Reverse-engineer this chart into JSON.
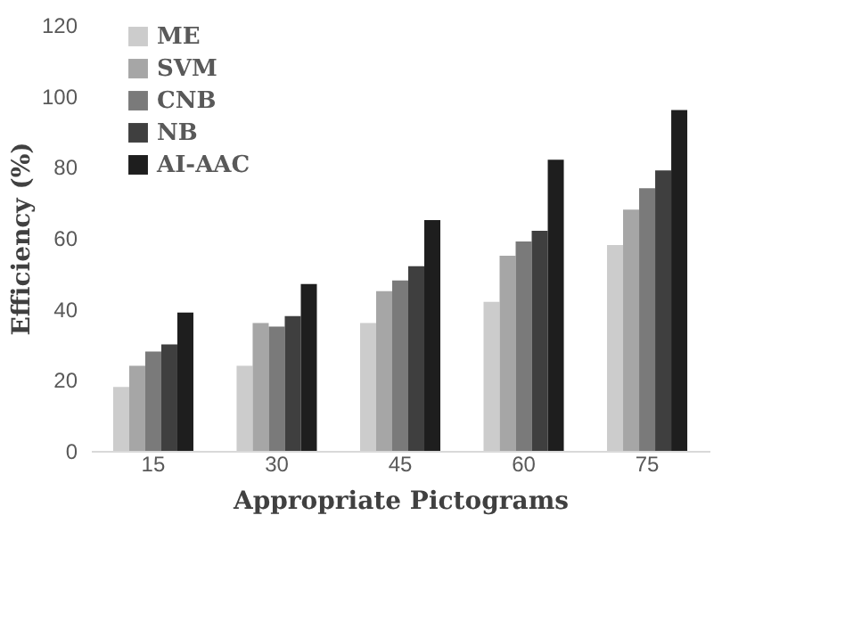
{
  "chart_data": {
    "type": "bar",
    "xlabel": "Appropriate Pictograms",
    "ylabel": "Efficiency (%)",
    "categories": [
      "15",
      "30",
      "45",
      "60",
      "75"
    ],
    "series": [
      {
        "name": "ME",
        "color": "#cccccc",
        "values": [
          18,
          24,
          36,
          42,
          58
        ]
      },
      {
        "name": "SVM",
        "color": "#a6a6a6",
        "values": [
          24,
          36,
          45,
          55,
          68
        ]
      },
      {
        "name": "CNB",
        "color": "#7a7a7a",
        "values": [
          28,
          35,
          48,
          59,
          74
        ]
      },
      {
        "name": "NB",
        "color": "#3f3f3f",
        "values": [
          30,
          38,
          52,
          62,
          79
        ]
      },
      {
        "name": "AI-AAC",
        "color": "#1e1e1e",
        "values": [
          39,
          47,
          65,
          82,
          96
        ]
      }
    ],
    "ylim": [
      0,
      120
    ],
    "yticks": [
      0,
      20,
      40,
      60,
      80,
      100,
      120
    ],
    "grid": false,
    "legend": "top left"
  }
}
